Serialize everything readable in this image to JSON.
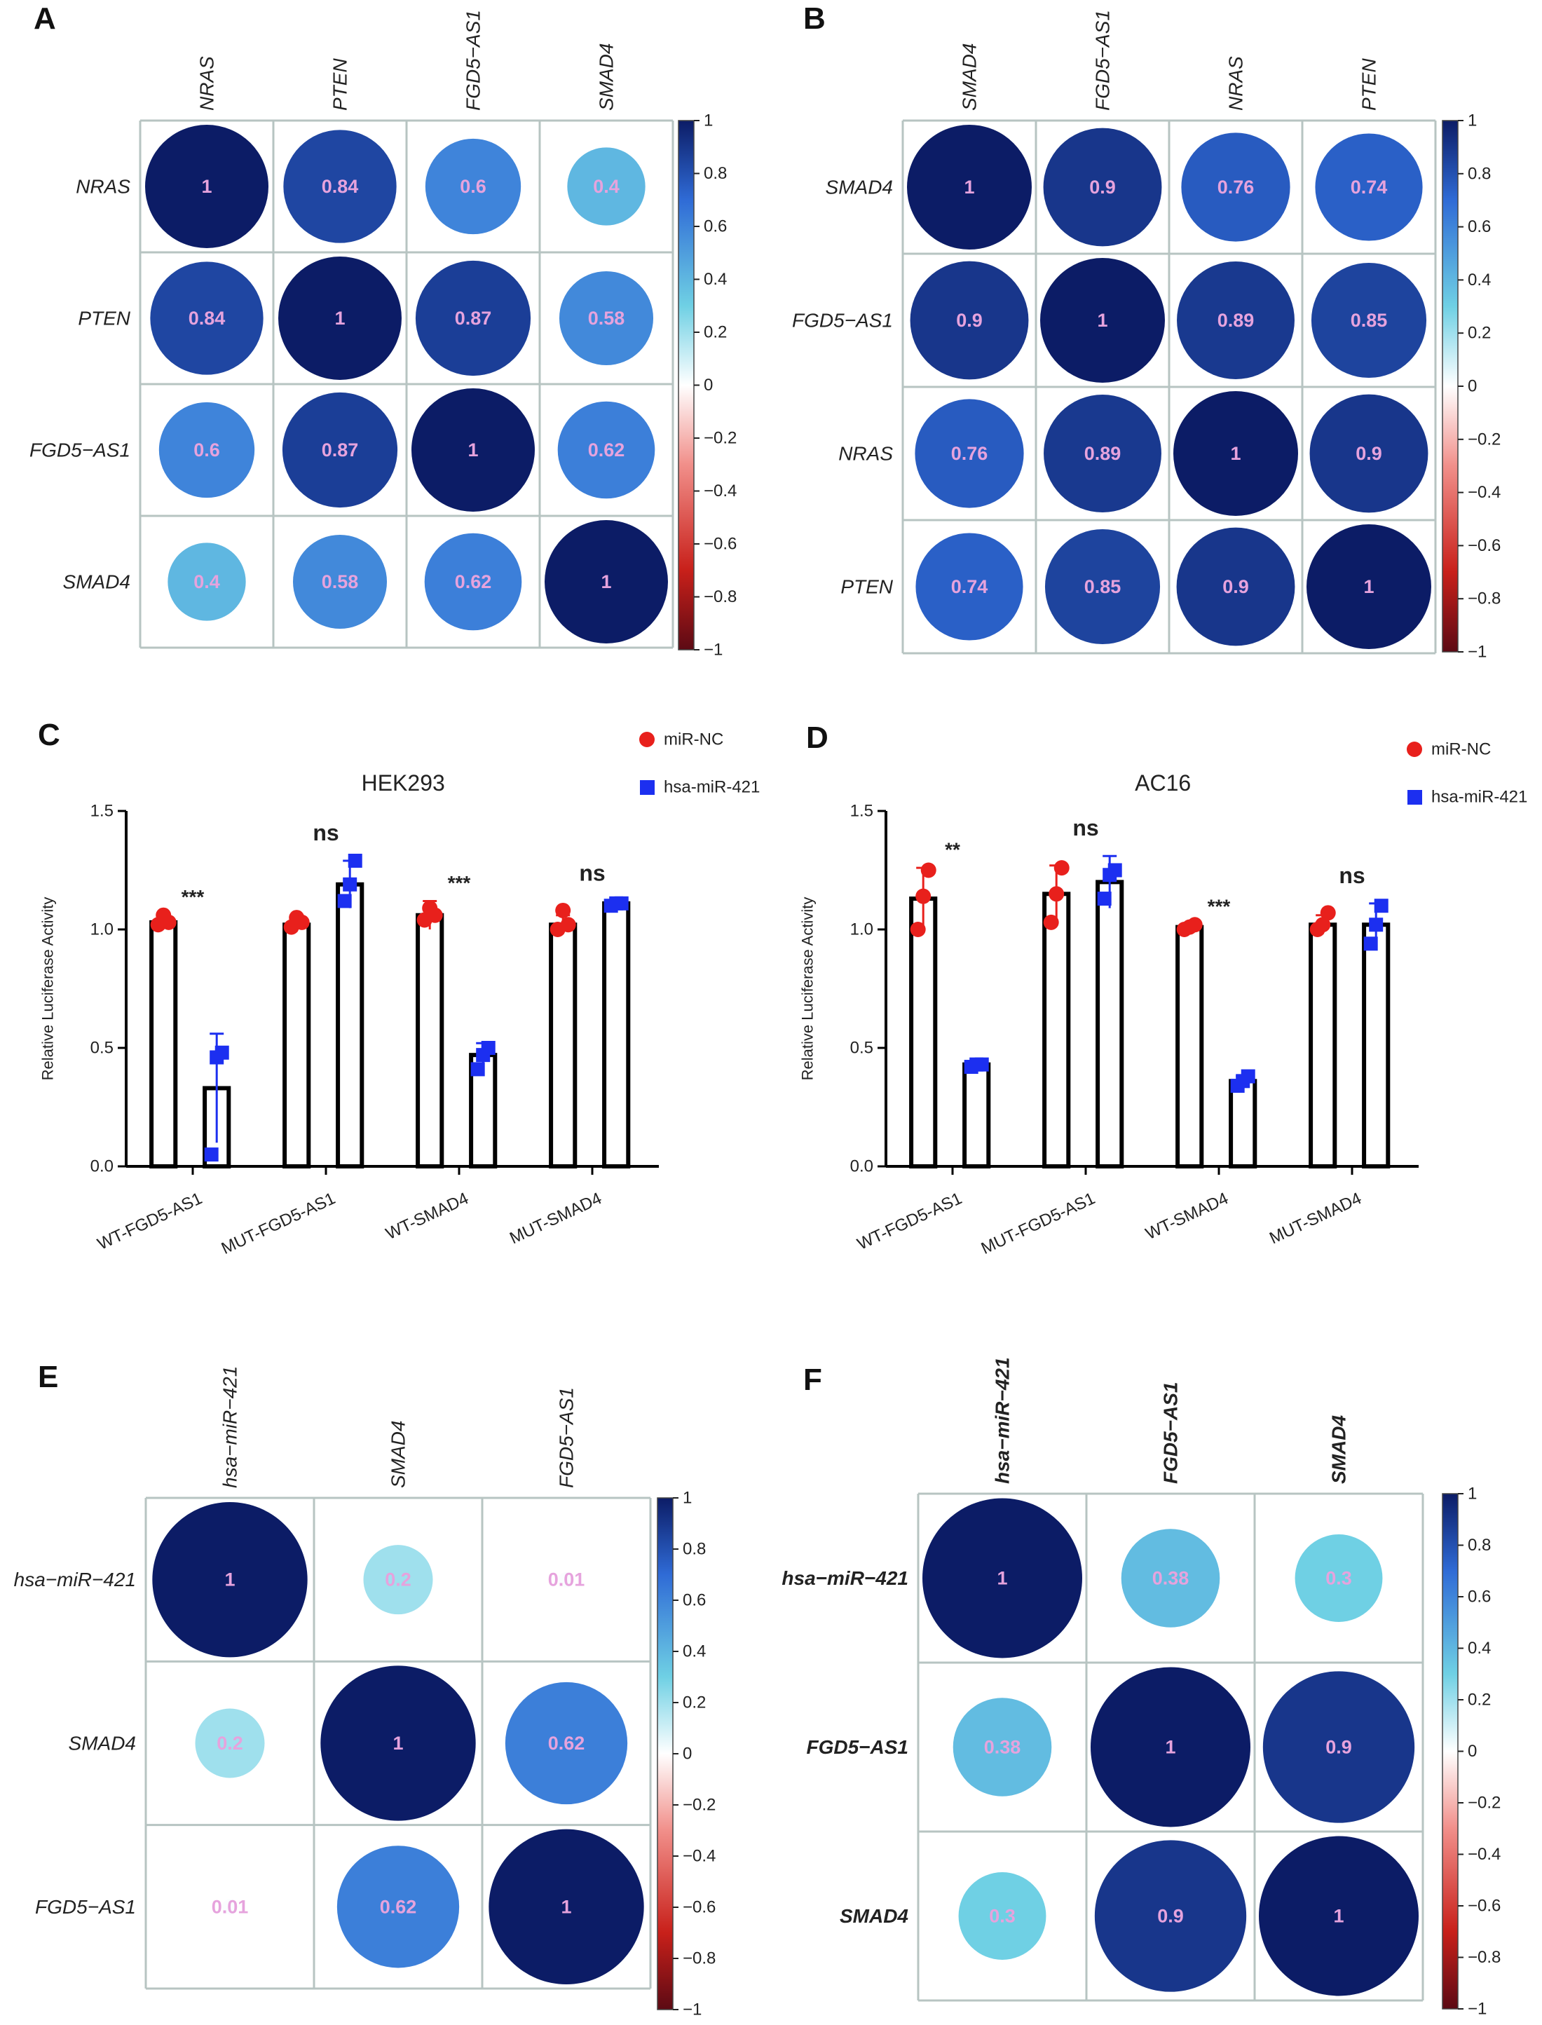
{
  "colors": {
    "grid": "#b7c4c2",
    "cell_text": "#e6a3dd",
    "bar_stroke": "#000000",
    "minc": "#e8201c",
    "mir421": "#1c2ff0",
    "scale_top": "#0c1c66",
    "scale_blue": "#2f6bd6",
    "scale_cyan": "#6fd0e4",
    "scale_white": "#ffffff",
    "scale_pink": "#f18f8a",
    "scale_red": "#c8201a",
    "scale_bottom": "#5c0a14"
  },
  "panels": {
    "A": {
      "letter": "A"
    },
    "B": {
      "letter": "B"
    },
    "C": {
      "letter": "C"
    },
    "D": {
      "letter": "D"
    },
    "E": {
      "letter": "E"
    },
    "F": {
      "letter": "F"
    }
  },
  "colorbar_ticks": [
    "1",
    "0.8",
    "0.6",
    "0.4",
    "0.2",
    "0",
    "−0.2",
    "−0.4",
    "−0.6",
    "−0.8",
    "−1"
  ],
  "chart_data": [
    {
      "panel": "A",
      "type": "heatmap",
      "labels": [
        "NRAS",
        "PTEN",
        "FGD5−AS1",
        "SMAD4"
      ],
      "label_style": "italic",
      "labels_text": [
        [
          "1",
          "0.84",
          "0.6",
          "0.4"
        ],
        [
          "0.84",
          "1",
          "0.87",
          "0.58"
        ],
        [
          "0.6",
          "0.87",
          "1",
          "0.62"
        ],
        [
          "0.4",
          "0.58",
          "0.62",
          "1"
        ]
      ],
      "values": [
        [
          1,
          0.84,
          0.6,
          0.4
        ],
        [
          0.84,
          1,
          0.87,
          0.58
        ],
        [
          0.6,
          0.87,
          1,
          0.62
        ],
        [
          0.4,
          0.58,
          0.62,
          1
        ]
      ],
      "color_range": [
        -1,
        1
      ]
    },
    {
      "panel": "B",
      "type": "heatmap",
      "labels": [
        "SMAD4",
        "FGD5−AS1",
        "NRAS",
        "PTEN"
      ],
      "label_style": "italic",
      "labels_text": [
        [
          "1",
          "0.9",
          "0.76",
          "0.74"
        ],
        [
          "0.9",
          "1",
          "0.89",
          "0.85"
        ],
        [
          "0.76",
          "0.89",
          "1",
          "0.9"
        ],
        [
          "0.74",
          "0.85",
          "0.9",
          "1"
        ]
      ],
      "values": [
        [
          1,
          0.9,
          0.76,
          0.74
        ],
        [
          0.9,
          1,
          0.89,
          0.85
        ],
        [
          0.76,
          0.89,
          1,
          0.9
        ],
        [
          0.74,
          0.85,
          0.9,
          1
        ]
      ],
      "color_range": [
        -1,
        1
      ]
    },
    {
      "panel": "C",
      "type": "bar",
      "title": "HEK293",
      "ylabel": "Relative Luciferase Activity",
      "xlabel": "",
      "ylim": [
        0,
        1.5
      ],
      "yticks": [
        "0.0",
        "0.5",
        "1.0",
        "1.5"
      ],
      "categories": [
        "WT-FGD5-AS1",
        "MUT-FGD5-AS1",
        "WT-SMAD4",
        "MUT-SMAD4"
      ],
      "significance": [
        "***",
        "ns",
        "***",
        "ns"
      ],
      "series": [
        {
          "name": "miR-NC",
          "values": [
            1.03,
            1.02,
            1.06,
            1.02
          ],
          "error": [
            0.03,
            0.03,
            0.06,
            0.04
          ],
          "points": [
            [
              1.02,
              1.06,
              1.03
            ],
            [
              1.01,
              1.05,
              1.03
            ],
            [
              1.04,
              1.09,
              1.06
            ],
            [
              1.0,
              1.08,
              1.02
            ]
          ]
        },
        {
          "name": "hsa-miR-421",
          "values": [
            0.33,
            1.19,
            0.47,
            1.11
          ],
          "error": [
            0.23,
            0.1,
            0.05,
            0.01
          ],
          "points": [
            [
              0.05,
              0.46,
              0.48
            ],
            [
              1.12,
              1.19,
              1.29
            ],
            [
              0.41,
              0.47,
              0.5
            ],
            [
              1.1,
              1.11,
              1.11
            ]
          ]
        }
      ],
      "legend": "top-right"
    },
    {
      "panel": "D",
      "type": "bar",
      "title": "AC16",
      "ylabel": "Relative Luciferase Activity",
      "xlabel": "",
      "ylim": [
        0,
        1.5
      ],
      "yticks": [
        "0.0",
        "0.5",
        "1.0",
        "1.5"
      ],
      "categories": [
        "WT-FGD5-AS1",
        "MUT-FGD5-AS1",
        "WT-SMAD4",
        "MUT-SMAD4"
      ],
      "significance": [
        "**",
        "ns",
        "***",
        "ns"
      ],
      "series": [
        {
          "name": "miR-NC",
          "values": [
            1.13,
            1.15,
            1.01,
            1.02
          ],
          "error": [
            0.13,
            0.12,
            0.01,
            0.04
          ],
          "points": [
            [
              1.0,
              1.14,
              1.25
            ],
            [
              1.03,
              1.15,
              1.26
            ],
            [
              1.0,
              1.01,
              1.02
            ],
            [
              1.0,
              1.02,
              1.07
            ]
          ]
        },
        {
          "name": "hsa-miR-421",
          "values": [
            0.43,
            1.2,
            0.36,
            1.02
          ],
          "error": [
            0.01,
            0.11,
            0.02,
            0.09
          ],
          "points": [
            [
              0.42,
              0.43,
              0.43
            ],
            [
              1.13,
              1.23,
              1.25
            ],
            [
              0.34,
              0.36,
              0.38
            ],
            [
              0.94,
              1.02,
              1.1
            ]
          ]
        }
      ],
      "legend": "top-right"
    },
    {
      "panel": "E",
      "type": "heatmap",
      "labels": [
        "hsa−miR−421",
        "SMAD4",
        "FGD5−AS1"
      ],
      "label_style": "italic",
      "labels_text": [
        [
          "1",
          "0.2",
          "0.01"
        ],
        [
          "0.2",
          "1",
          "0.62"
        ],
        [
          "0.01",
          "0.62",
          "1"
        ]
      ],
      "values": [
        [
          1,
          0.2,
          0.01
        ],
        [
          0.2,
          1,
          0.62
        ],
        [
          0.01,
          0.62,
          1
        ]
      ],
      "color_range": [
        -1,
        1
      ]
    },
    {
      "panel": "F",
      "type": "heatmap",
      "labels": [
        "hsa−miR−421",
        "FGD5−AS1",
        "SMAD4"
      ],
      "label_style": "bold-italic",
      "labels_text": [
        [
          "1",
          "0.38",
          "0.3"
        ],
        [
          "0.38",
          "1",
          "0.9"
        ],
        [
          "0.3",
          "0.9",
          "1"
        ]
      ],
      "values": [
        [
          1,
          0.38,
          0.3
        ],
        [
          0.38,
          1,
          0.9
        ],
        [
          0.3,
          0.9,
          1
        ]
      ],
      "color_range": [
        -1,
        1
      ]
    }
  ]
}
